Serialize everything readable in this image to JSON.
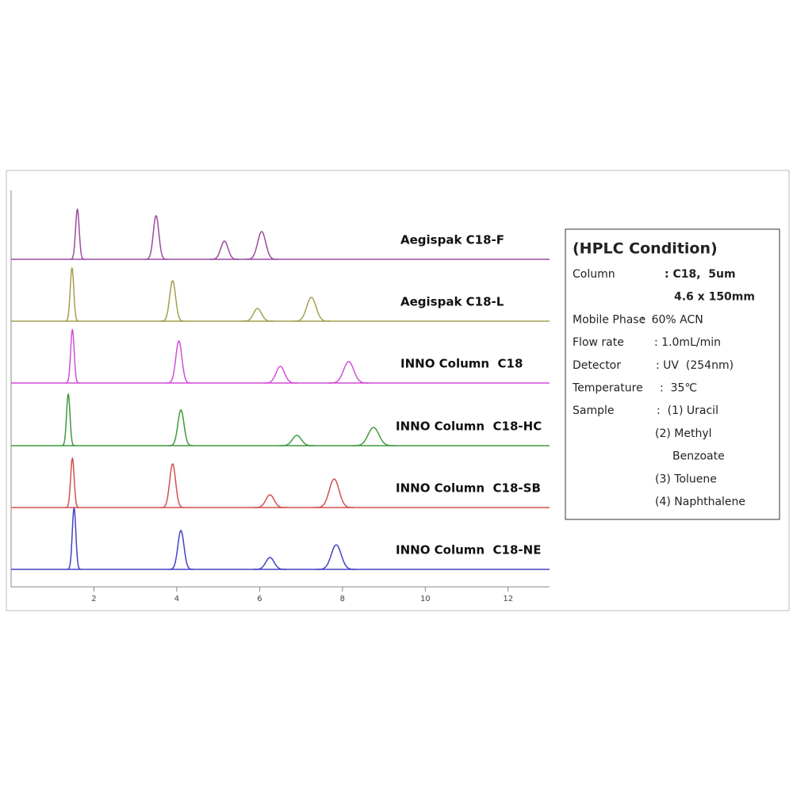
{
  "chart_data": {
    "type": "chromatogram",
    "xlim": [
      0,
      13
    ],
    "xticks": [
      2,
      4,
      6,
      8,
      10,
      12
    ],
    "series": [
      {
        "name": "Aegispak C18-F",
        "color": "#9a4c9e",
        "x": [
          1.6,
          3.5,
          5.15,
          6.05
        ],
        "values": [
          63,
          55,
          23,
          35
        ]
      },
      {
        "name": "Aegispak C18-L",
        "color": "#a3a04e",
        "x": [
          1.47,
          3.9,
          5.95,
          7.25
        ],
        "values": [
          67,
          51,
          16,
          30
        ]
      },
      {
        "name": "INNO Column  C18",
        "color": "#d24fd6",
        "x": [
          1.48,
          4.05,
          6.5,
          8.15
        ],
        "values": [
          67,
          53,
          21,
          27
        ]
      },
      {
        "name": "INNO Column  C18-HC",
        "color": "#3f9a3f",
        "x": [
          1.38,
          4.1,
          6.9,
          8.75
        ],
        "values": [
          65,
          45,
          13,
          23
        ]
      },
      {
        "name": "INNO Column  C18-SB",
        "color": "#d1504f",
        "x": [
          1.48,
          3.9,
          6.25,
          7.8
        ],
        "values": [
          62,
          55,
          16,
          36
        ]
      },
      {
        "name": "INNO Column  C18-NE",
        "color": "#4343c4",
        "x": [
          1.52,
          4.1,
          6.25,
          7.85
        ],
        "values": [
          77,
          49,
          15,
          31
        ]
      }
    ]
  },
  "condition_box": {
    "title": "(HPLC Condition)",
    "rows": [
      {
        "label": "Column",
        "value": ": C18,  5um"
      },
      {
        "value": "4.6 x 150mm"
      },
      {
        "label": "Mobile Phase",
        "value": ":  60% ACN"
      },
      {
        "label": "Flow rate",
        "value": ": 1.0mL/min"
      },
      {
        "label": "Detector",
        "value": ": UV  (254nm)"
      },
      {
        "label": "Temperature",
        "value": ":  35℃"
      },
      {
        "label": "Sample",
        "value": ":  (1) Uracil"
      },
      {
        "value": "(2) Methyl"
      },
      {
        "value": "Benzoate"
      },
      {
        "value": "(3) Toluene"
      },
      {
        "value": "(4) Naphthalene"
      }
    ]
  }
}
